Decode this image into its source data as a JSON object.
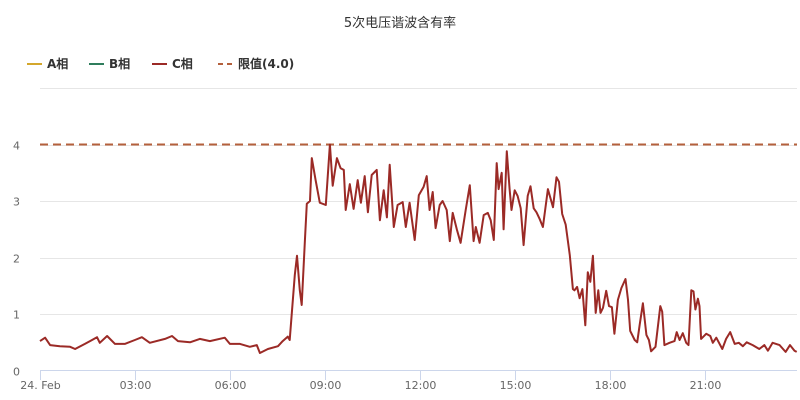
{
  "chart_data": {
    "type": "line",
    "title": "5次电压谐波含有率",
    "xlabel": "",
    "ylabel": "",
    "x_unit": "hours since 24. Feb 00:00",
    "xlim": [
      0,
      23.92
    ],
    "ylim": [
      0,
      5
    ],
    "grid": true,
    "legend_placement": "top-left",
    "x_ticks": [
      {
        "value": 0,
        "label": "24. Feb"
      },
      {
        "value": 3,
        "label": "03:00"
      },
      {
        "value": 6,
        "label": "06:00"
      },
      {
        "value": 9,
        "label": "09:00"
      },
      {
        "value": 12,
        "label": "12:00"
      },
      {
        "value": 15,
        "label": "15:00"
      },
      {
        "value": 18,
        "label": "18:00"
      },
      {
        "value": 21,
        "label": "21:00"
      }
    ],
    "y_ticks": [
      {
        "value": 0,
        "label": "0"
      },
      {
        "value": 1,
        "label": "1"
      },
      {
        "value": 2,
        "label": "2"
      },
      {
        "value": 3,
        "label": "3"
      },
      {
        "value": 4,
        "label": "4"
      },
      {
        "value": 5,
        "label": ""
      }
    ],
    "legend": [
      {
        "name": "A相",
        "color": "#d4a72c",
        "style": "solid"
      },
      {
        "name": "B相",
        "color": "#2f7d5c",
        "style": "solid"
      },
      {
        "name": "C相",
        "color": "#9b2a26",
        "style": "solid"
      },
      {
        "name": "限值(4.0)",
        "color": "#b4603c",
        "style": "dashed"
      }
    ],
    "limit": {
      "name": "限值(4.0)",
      "value": 4.0,
      "color": "#b4603c"
    },
    "series": [
      {
        "name": "A相",
        "color": "#d4a72c",
        "points": []
      },
      {
        "name": "B相",
        "color": "#2f7d5c",
        "points": []
      },
      {
        "name": "C相",
        "color": "#9b2a26",
        "points": [
          [
            0,
            0.52
          ],
          [
            0.16,
            0.58
          ],
          [
            0.32,
            0.45
          ],
          [
            0.63,
            0.43
          ],
          [
            0.95,
            0.42
          ],
          [
            1.11,
            0.38
          ],
          [
            1.42,
            0.47
          ],
          [
            1.58,
            0.52
          ],
          [
            1.8,
            0.59
          ],
          [
            1.89,
            0.49
          ],
          [
            2.12,
            0.61
          ],
          [
            2.37,
            0.47
          ],
          [
            2.68,
            0.47
          ],
          [
            3.0,
            0.54
          ],
          [
            3.22,
            0.59
          ],
          [
            3.47,
            0.49
          ],
          [
            3.95,
            0.56
          ],
          [
            4.17,
            0.61
          ],
          [
            4.36,
            0.52
          ],
          [
            4.74,
            0.5
          ],
          [
            5.05,
            0.56
          ],
          [
            5.37,
            0.52
          ],
          [
            5.84,
            0.58
          ],
          [
            6.0,
            0.47
          ],
          [
            6.32,
            0.47
          ],
          [
            6.63,
            0.42
          ],
          [
            6.85,
            0.45
          ],
          [
            6.95,
            0.31
          ],
          [
            7.2,
            0.38
          ],
          [
            7.52,
            0.43
          ],
          [
            7.67,
            0.52
          ],
          [
            7.83,
            0.6
          ],
          [
            7.89,
            0.54
          ],
          [
            8.05,
            1.69
          ],
          [
            8.12,
            2.03
          ],
          [
            8.21,
            1.42
          ],
          [
            8.27,
            1.16
          ],
          [
            8.37,
            2.3
          ],
          [
            8.43,
            2.95
          ],
          [
            8.53,
            3.0
          ],
          [
            8.59,
            3.76
          ],
          [
            8.71,
            3.37
          ],
          [
            8.84,
            2.97
          ],
          [
            9.03,
            2.93
          ],
          [
            9.16,
            4.0
          ],
          [
            9.25,
            3.27
          ],
          [
            9.38,
            3.76
          ],
          [
            9.5,
            3.58
          ],
          [
            9.6,
            3.55
          ],
          [
            9.66,
            2.84
          ],
          [
            9.79,
            3.3
          ],
          [
            9.91,
            2.86
          ],
          [
            10.04,
            3.37
          ],
          [
            10.14,
            2.97
          ],
          [
            10.26,
            3.44
          ],
          [
            10.36,
            2.8
          ],
          [
            10.48,
            3.46
          ],
          [
            10.64,
            3.55
          ],
          [
            10.74,
            2.66
          ],
          [
            10.86,
            3.19
          ],
          [
            10.96,
            2.71
          ],
          [
            11.05,
            3.64
          ],
          [
            11.18,
            2.54
          ],
          [
            11.3,
            2.93
          ],
          [
            11.46,
            2.98
          ],
          [
            11.56,
            2.54
          ],
          [
            11.68,
            2.97
          ],
          [
            11.84,
            2.31
          ],
          [
            11.97,
            3.1
          ],
          [
            12.12,
            3.25
          ],
          [
            12.22,
            3.44
          ],
          [
            12.31,
            2.84
          ],
          [
            12.41,
            3.16
          ],
          [
            12.5,
            2.52
          ],
          [
            12.63,
            2.93
          ],
          [
            12.72,
            3.0
          ],
          [
            12.85,
            2.84
          ],
          [
            12.95,
            2.29
          ],
          [
            13.04,
            2.79
          ],
          [
            13.17,
            2.5
          ],
          [
            13.29,
            2.26
          ],
          [
            13.45,
            2.84
          ],
          [
            13.58,
            3.28
          ],
          [
            13.7,
            2.29
          ],
          [
            13.77,
            2.54
          ],
          [
            13.89,
            2.26
          ],
          [
            14.02,
            2.75
          ],
          [
            14.15,
            2.79
          ],
          [
            14.24,
            2.66
          ],
          [
            14.34,
            2.31
          ],
          [
            14.43,
            3.67
          ],
          [
            14.49,
            3.21
          ],
          [
            14.59,
            3.5
          ],
          [
            14.65,
            2.5
          ],
          [
            14.75,
            3.88
          ],
          [
            14.84,
            3.21
          ],
          [
            14.9,
            2.84
          ],
          [
            15.0,
            3.19
          ],
          [
            15.09,
            3.09
          ],
          [
            15.19,
            2.87
          ],
          [
            15.28,
            2.22
          ],
          [
            15.41,
            3.09
          ],
          [
            15.5,
            3.26
          ],
          [
            15.6,
            2.87
          ],
          [
            15.69,
            2.8
          ],
          [
            15.79,
            2.68
          ],
          [
            15.89,
            2.54
          ],
          [
            16.05,
            3.21
          ],
          [
            16.21,
            2.89
          ],
          [
            16.32,
            3.42
          ],
          [
            16.4,
            3.34
          ],
          [
            16.5,
            2.77
          ],
          [
            16.61,
            2.58
          ],
          [
            16.74,
            2.04
          ],
          [
            16.84,
            1.44
          ],
          [
            16.89,
            1.42
          ],
          [
            16.97,
            1.48
          ],
          [
            17.05,
            1.28
          ],
          [
            17.14,
            1.44
          ],
          [
            17.23,
            0.8
          ],
          [
            17.31,
            1.74
          ],
          [
            17.39,
            1.57
          ],
          [
            17.47,
            2.03
          ],
          [
            17.56,
            1.02
          ],
          [
            17.64,
            1.42
          ],
          [
            17.71,
            1.02
          ],
          [
            17.79,
            1.11
          ],
          [
            17.89,
            1.41
          ],
          [
            17.98,
            1.14
          ],
          [
            18.07,
            1.12
          ],
          [
            18.15,
            0.65
          ],
          [
            18.26,
            1.25
          ],
          [
            18.37,
            1.46
          ],
          [
            18.5,
            1.62
          ],
          [
            18.58,
            1.25
          ],
          [
            18.65,
            0.7
          ],
          [
            18.79,
            0.54
          ],
          [
            18.87,
            0.5
          ],
          [
            18.95,
            0.81
          ],
          [
            19.05,
            1.19
          ],
          [
            19.16,
            0.63
          ],
          [
            19.24,
            0.54
          ],
          [
            19.31,
            0.34
          ],
          [
            19.45,
            0.42
          ],
          [
            19.6,
            1.14
          ],
          [
            19.66,
            1.04
          ],
          [
            19.73,
            0.45
          ],
          [
            19.89,
            0.49
          ],
          [
            20.05,
            0.52
          ],
          [
            20.12,
            0.68
          ],
          [
            20.21,
            0.54
          ],
          [
            20.31,
            0.66
          ],
          [
            20.42,
            0.49
          ],
          [
            20.49,
            0.45
          ],
          [
            20.58,
            1.42
          ],
          [
            20.65,
            1.4
          ],
          [
            20.71,
            1.08
          ],
          [
            20.79,
            1.27
          ],
          [
            20.84,
            1.14
          ],
          [
            20.89,
            0.56
          ],
          [
            21.05,
            0.65
          ],
          [
            21.18,
            0.61
          ],
          [
            21.26,
            0.49
          ],
          [
            21.37,
            0.58
          ],
          [
            21.56,
            0.38
          ],
          [
            21.68,
            0.56
          ],
          [
            21.81,
            0.68
          ],
          [
            21.95,
            0.47
          ],
          [
            22.08,
            0.49
          ],
          [
            22.21,
            0.43
          ],
          [
            22.33,
            0.5
          ],
          [
            22.52,
            0.45
          ],
          [
            22.73,
            0.38
          ],
          [
            22.89,
            0.45
          ],
          [
            23.0,
            0.35
          ],
          [
            23.15,
            0.49
          ],
          [
            23.37,
            0.45
          ],
          [
            23.56,
            0.33
          ],
          [
            23.7,
            0.45
          ],
          [
            23.84,
            0.35
          ],
          [
            23.91,
            0.33
          ]
        ]
      }
    ]
  }
}
